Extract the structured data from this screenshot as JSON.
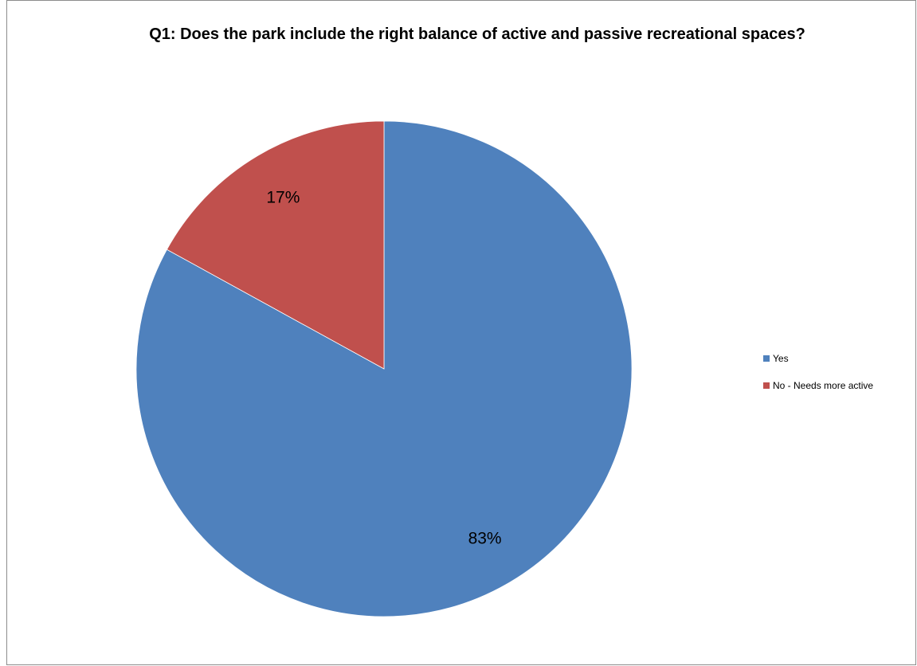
{
  "chart_data": {
    "type": "pie",
    "title": "Q1: Does the park include the right balance of active and passive recreational spaces?",
    "categories": [
      "Yes",
      "No - Needs more active"
    ],
    "values": [
      83,
      17
    ],
    "labels": [
      "83%",
      "17%"
    ],
    "colors": [
      "#4f81bd",
      "#c0504d"
    ],
    "legend_position": "right",
    "start_angle_deg": 0,
    "direction": "clockwise"
  }
}
